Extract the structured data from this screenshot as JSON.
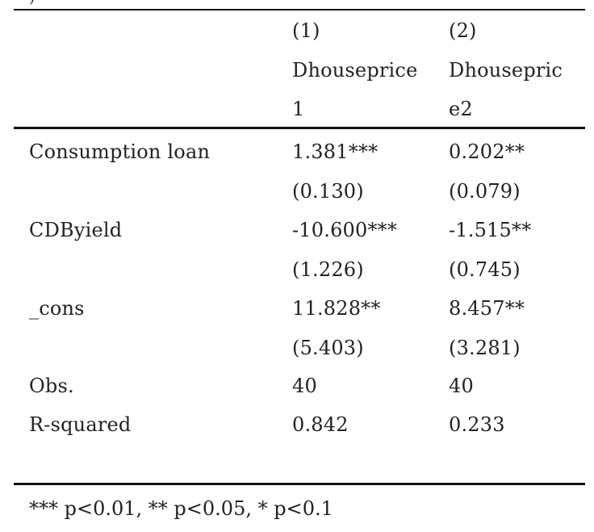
{
  "header": {
    "col1_number": "(1)",
    "col2_number": "(2)",
    "col1_name_line1": "Dhouseprice",
    "col1_name_line2": "1",
    "col2_name_line1": "Dhousepric",
    "col2_name_line2": "e2"
  },
  "rows": [
    {
      "label": "Consumption loan",
      "col1": "1.381***",
      "col2": "0.202**"
    },
    {
      "label": "",
      "col1": "(0.130)",
      "col2": "(0.079)"
    },
    {
      "label": "CDByield",
      "col1": "-10.600***",
      "col2": "-1.515**"
    },
    {
      "label": "",
      "col1": "(1.226)",
      "col2": "(0.745)"
    },
    {
      "label": "_cons",
      "col1": "11.828**",
      "col2": "8.457**"
    },
    {
      "label": "",
      "col1": "(5.403)",
      "col2": "(3.281)"
    },
    {
      "label": "Obs.",
      "col1": "40",
      "col2": "40"
    },
    {
      "label": "R-squared",
      "col1": "0.842",
      "col2": "0.233"
    }
  ],
  "footnote": "*** p<0.01, ** p<0.05, * p<0.1",
  "corner_mark": ")"
}
